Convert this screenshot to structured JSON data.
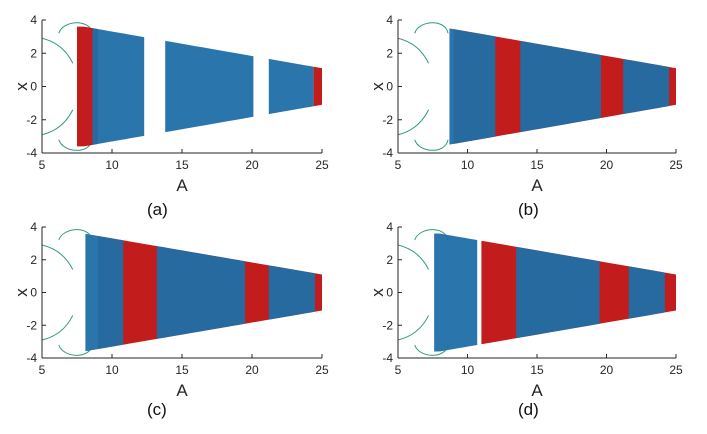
{
  "figure": {
    "captions": [
      "(a)",
      "(b)",
      "(c)",
      "(d)"
    ]
  },
  "colors": {
    "blue": "#1f6fa8",
    "red": "#c01010",
    "axis": "#262626",
    "green": "#2f9c7a"
  },
  "chart_data": [
    {
      "type": "scatter",
      "panel": "(a)",
      "xlabel": "A",
      "ylabel": "x",
      "xlim": [
        5,
        25
      ],
      "ylim": [
        -4,
        4
      ],
      "xticks": [
        5,
        10,
        15,
        20,
        25
      ],
      "yticks": [
        -4,
        -2,
        0,
        2,
        4
      ],
      "grid": false,
      "series": [
        {
          "color": "red",
          "bands": [
            [
              7.5,
              9.0
            ],
            [
              24.4,
              25.0
            ]
          ]
        },
        {
          "color": "blue",
          "bands": [
            [
              8.6,
              12.3
            ],
            [
              13.8,
              20.1
            ],
            [
              21.2,
              24.4
            ]
          ]
        }
      ]
    },
    {
      "type": "scatter",
      "panel": "(b)",
      "xlabel": "A",
      "ylabel": "x",
      "xlim": [
        5,
        25
      ],
      "ylim": [
        -4,
        4
      ],
      "xticks": [
        5,
        10,
        15,
        20,
        25
      ],
      "yticks": [
        -4,
        -2,
        0,
        2,
        4
      ],
      "grid": false,
      "series": [
        {
          "color": "red",
          "bands": [
            [
              9.0,
              25.0
            ]
          ]
        },
        {
          "color": "blue",
          "bands": [
            [
              8.7,
              12.0
            ],
            [
              13.8,
              19.6
            ],
            [
              21.2,
              24.5
            ]
          ]
        }
      ]
    },
    {
      "type": "scatter",
      "panel": "(c)",
      "xlabel": "A",
      "ylabel": "x",
      "xlim": [
        5,
        25
      ],
      "ylim": [
        -4,
        4
      ],
      "xticks": [
        5,
        10,
        15,
        20,
        25
      ],
      "yticks": [
        -4,
        -2,
        0,
        2,
        4
      ],
      "grid": false,
      "series": [
        {
          "color": "red",
          "bands": [
            [
              9.0,
              25.0
            ]
          ]
        },
        {
          "color": "blue",
          "bands": [
            [
              8.1,
              10.8
            ],
            [
              13.2,
              19.5
            ],
            [
              21.2,
              24.5
            ]
          ]
        }
      ]
    },
    {
      "type": "scatter",
      "panel": "(d)",
      "xlabel": "A",
      "ylabel": "x",
      "xlim": [
        5,
        25
      ],
      "ylim": [
        -4,
        4
      ],
      "xticks": [
        5,
        10,
        15,
        20,
        25
      ],
      "yticks": [
        -4,
        -2,
        0,
        2,
        4
      ],
      "grid": false,
      "series": [
        {
          "color": "red",
          "bands": [
            [
              11.0,
              25.0
            ]
          ]
        },
        {
          "color": "blue",
          "bands": [
            [
              7.6,
              10.7
            ],
            [
              13.5,
              19.5
            ],
            [
              21.6,
              24.2
            ]
          ]
        }
      ]
    }
  ]
}
